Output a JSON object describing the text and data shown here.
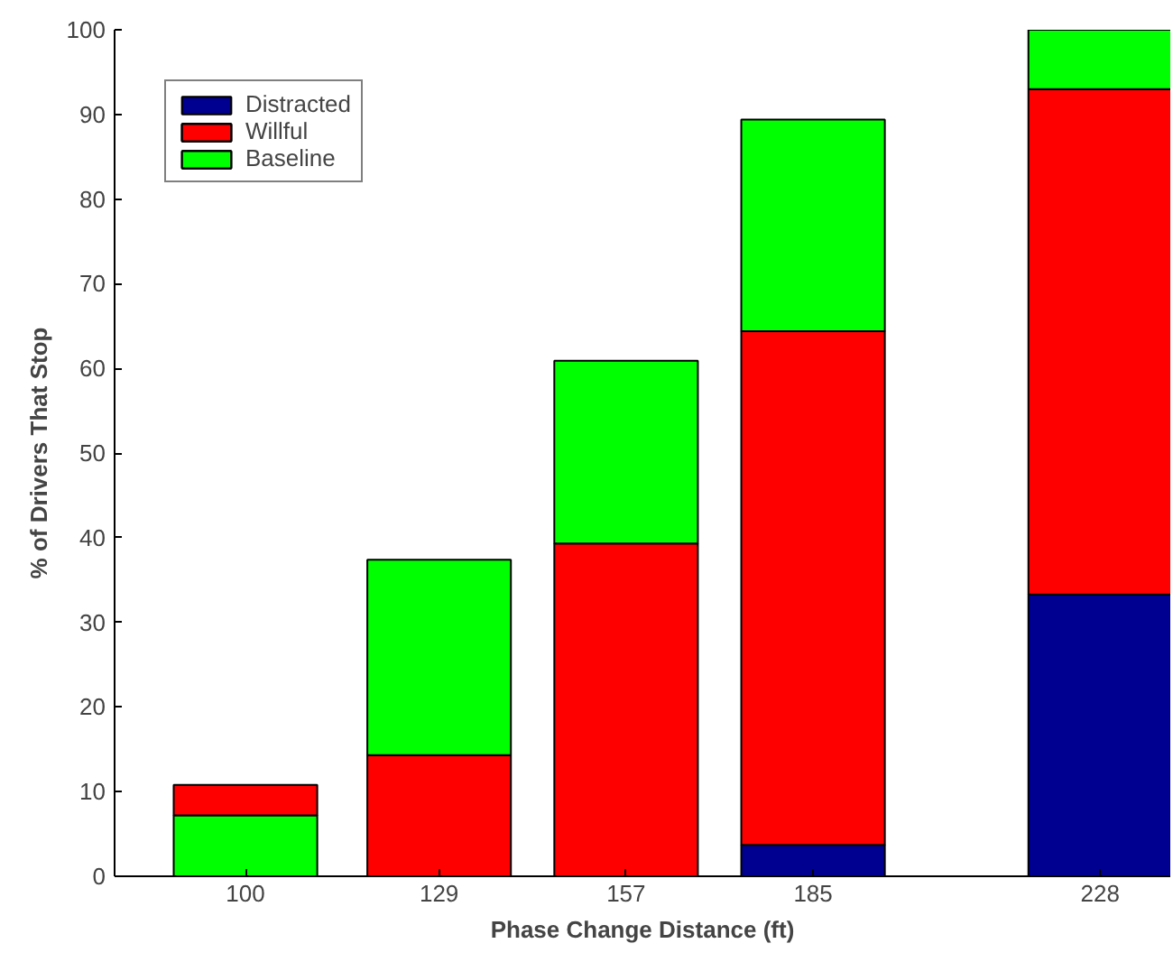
{
  "chart_data": {
    "type": "bar",
    "stacked": true,
    "xlabel": "Phase Change Distance (ft)",
    "ylabel": "% of Drivers That Stop",
    "x": [
      100,
      129,
      157,
      185,
      228
    ],
    "series": [
      {
        "color": "#00ff00",
        "values": [
          7.2,
          null,
          null,
          null,
          null
        ]
      },
      {
        "name": "Distracted",
        "color": "#000090",
        "values": [
          null,
          null,
          null,
          3.7,
          33.3
        ]
      },
      {
        "name": "Willful",
        "color": "#ff0000",
        "values": [
          3.6,
          14.3,
          39.3,
          60.7,
          59.7
        ]
      },
      {
        "name": "Baseline",
        "color": "#00ff00",
        "values": [
          null,
          23.1,
          21.6,
          25.0,
          7.0
        ]
      }
    ],
    "xlim": [
      80.4,
      238.5
    ],
    "xticks": [
      100,
      129,
      157,
      185,
      228
    ],
    "ylim": [
      0,
      100
    ],
    "yticks": [
      0,
      10,
      20,
      30,
      40,
      50,
      60,
      70,
      80,
      90,
      100
    ],
    "grid": false,
    "legend": "top left"
  }
}
